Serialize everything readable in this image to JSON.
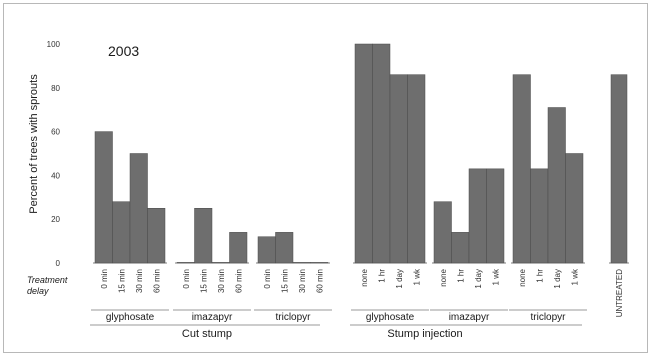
{
  "chart_data": {
    "type": "bar",
    "annotation": "2003",
    "ylabel": "Percent of trees with sprouts",
    "ylim": [
      0,
      100
    ],
    "yticks": [
      0,
      20,
      40,
      60,
      80,
      100
    ],
    "grid": false,
    "delay_label_line1": "Treatment",
    "delay_label_line2": "delay",
    "sections": [
      {
        "label": "Cut stump",
        "groups": [
          {
            "label": "glyphosate",
            "categories": [
              "0 min",
              "15 min",
              "30 min",
              "60 min"
            ],
            "values": [
              60,
              28,
              50,
              25
            ]
          },
          {
            "label": "imazapyr",
            "categories": [
              "0 min",
              "15 min",
              "30 min",
              "60 min"
            ],
            "values": [
              0,
              25,
              0,
              14
            ]
          },
          {
            "label": "triclopyr",
            "categories": [
              "0 min",
              "15 min",
              "30 min",
              "60 min"
            ],
            "values": [
              12,
              14,
              0,
              0
            ]
          }
        ]
      },
      {
        "label": "Stump injection",
        "groups": [
          {
            "label": "glyphosate",
            "categories": [
              "none",
              "1 hr",
              "1 day",
              "1 wk"
            ],
            "values": [
              100,
              100,
              86,
              86
            ]
          },
          {
            "label": "imazapyr",
            "categories": [
              "none",
              "1 hr",
              "1 day",
              "1 wk"
            ],
            "values": [
              28,
              14,
              43,
              43
            ]
          },
          {
            "label": "triclopyr",
            "categories": [
              "none",
              "1 hr",
              "1 day",
              "1 wk"
            ],
            "values": [
              86,
              43,
              71,
              50
            ]
          }
        ]
      }
    ],
    "untreated": {
      "label": "UNTREATED",
      "value": 86
    },
    "bar_color": "#6e6e6e"
  }
}
